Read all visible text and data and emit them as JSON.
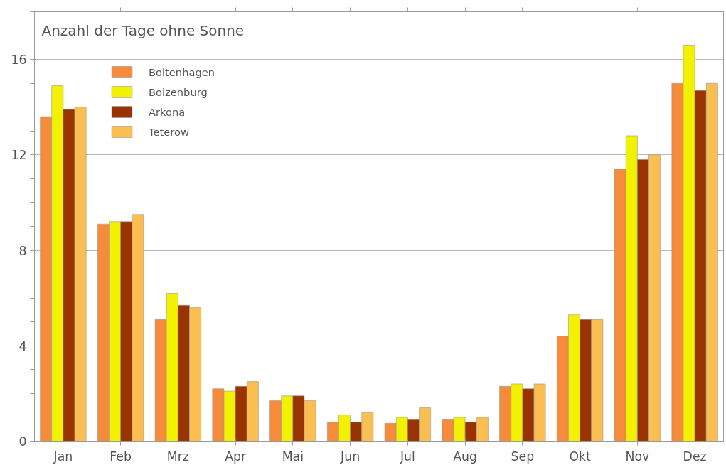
{
  "chart_data": {
    "type": "bar",
    "title": "Anzahl der Tage ohne Sonne",
    "categories": [
      "Jan",
      "Feb",
      "Mrz",
      "Apr",
      "Mai",
      "Jun",
      "Jul",
      "Aug",
      "Sep",
      "Okt",
      "Nov",
      "Dez"
    ],
    "series": [
      {
        "name": "Boltenhagen",
        "color": "#f68b3c",
        "values": [
          13.6,
          9.1,
          5.1,
          2.2,
          1.7,
          0.8,
          0.75,
          0.9,
          2.3,
          4.4,
          11.4,
          15.0
        ]
      },
      {
        "name": "Boizenburg",
        "color": "#f2f200",
        "values": [
          14.9,
          9.2,
          6.2,
          2.1,
          1.9,
          1.1,
          1.0,
          1.0,
          2.4,
          5.3,
          12.8,
          16.6
        ]
      },
      {
        "name": "Arkona",
        "color": "#993300",
        "values": [
          13.9,
          9.2,
          5.7,
          2.3,
          1.9,
          0.8,
          0.9,
          0.8,
          2.2,
          5.1,
          11.8,
          14.7
        ]
      },
      {
        "name": "Teterow",
        "color": "#fbbe50",
        "values": [
          14.0,
          9.5,
          5.6,
          2.5,
          1.7,
          1.2,
          1.4,
          1.0,
          2.4,
          5.1,
          12.0,
          15.0
        ]
      }
    ],
    "ylim": [
      0,
      18
    ],
    "yticks": [
      0,
      4,
      8,
      12,
      16
    ],
    "grid": "y",
    "legend": "top left"
  }
}
